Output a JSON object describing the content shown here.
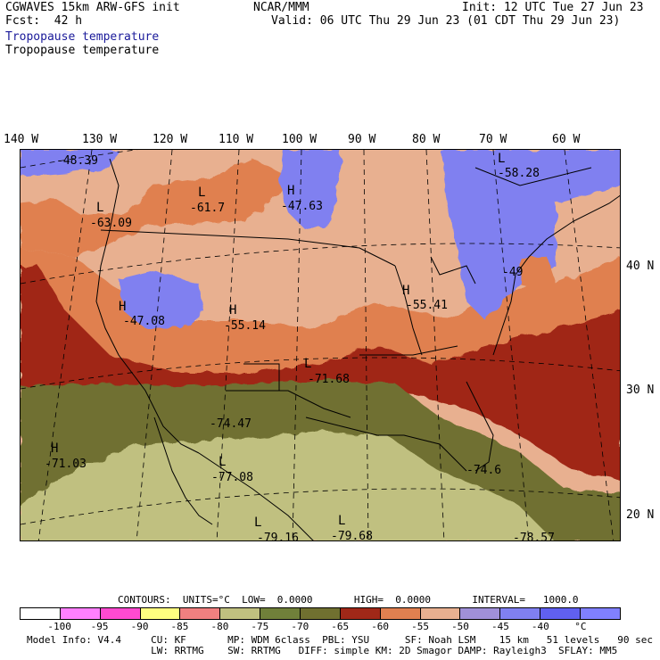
{
  "header": {
    "model": "CGWAVES 15km ARW-GFS init",
    "org": "NCAR/MMM",
    "init": "Init: 12 UTC Tue 27 Jun 23",
    "fcst": "Fcst:  42 h",
    "valid": "Valid: 06 UTC Thu 29 Jun 23 (01 CDT Thu 29 Jun 23)",
    "field_title_blue": "Tropopause temperature",
    "field_title_black": "Tropopause temperature"
  },
  "longitudes": [
    "140 W",
    "130 W",
    "120 W",
    "110 W",
    "100 W",
    "90 W",
    "80 W",
    "70 W",
    "60 W"
  ],
  "latitudes": [
    "40 N",
    "30 N",
    "20 N"
  ],
  "map_labels": [
    {
      "mark": "",
      "value": "-48.39"
    },
    {
      "mark": "L",
      "value": "-58.28"
    },
    {
      "mark": "L",
      "value": "-61.7"
    },
    {
      "mark": "L",
      "value": "-63.09"
    },
    {
      "mark": "H",
      "value": "-47.63"
    },
    {
      "mark": "",
      "value": "-49"
    },
    {
      "mark": "H",
      "value": "-55.41"
    },
    {
      "mark": "H",
      "value": "-47.08"
    },
    {
      "mark": "H",
      "value": "-55.14"
    },
    {
      "mark": "L",
      "value": "-71.68"
    },
    {
      "mark": "",
      "value": "-74.47"
    },
    {
      "mark": "H",
      "value": "-71.03"
    },
    {
      "mark": "L",
      "value": "-77.08"
    },
    {
      "mark": "L",
      "value": "-79.16"
    },
    {
      "mark": "L",
      "value": "-79.68"
    },
    {
      "mark": "",
      "value": "-74.6"
    },
    {
      "mark": "",
      "value": "-78.57"
    }
  ],
  "contours": {
    "line": "CONTOURS:  UNITS=°C  LOW=  0.0000       HIGH=  0.0000       INTERVAL=   1000.0"
  },
  "colorbar": {
    "colors": [
      "#ffffff",
      "#ff80ff",
      "#ff4ad0",
      "#ffff80",
      "#f08080",
      "#c0c080",
      "#70803a",
      "#707030",
      "#a02818",
      "#e08050",
      "#e8b090",
      "#a090d8",
      "#8080f0",
      "#6060f0",
      "#8080ff"
    ],
    "labels": [
      "-100",
      "-95",
      "-90",
      "-85",
      "-80",
      "-75",
      "-70",
      "-65",
      "-60",
      "-55",
      "-50",
      "-45",
      "-40",
      "°C"
    ]
  },
  "footer": {
    "line1": "Model Info: V4.4     CU: KF       MP: WDM 6class  PBL: YSU      SF: Noah LSM    15 km   51 levels   90 sec",
    "line2": "                     LW: RRTMG    SW: RRTMG   DIFF: simple KM: 2D Smagor DAMP: Rayleigh3  SFLAY: MM5"
  }
}
